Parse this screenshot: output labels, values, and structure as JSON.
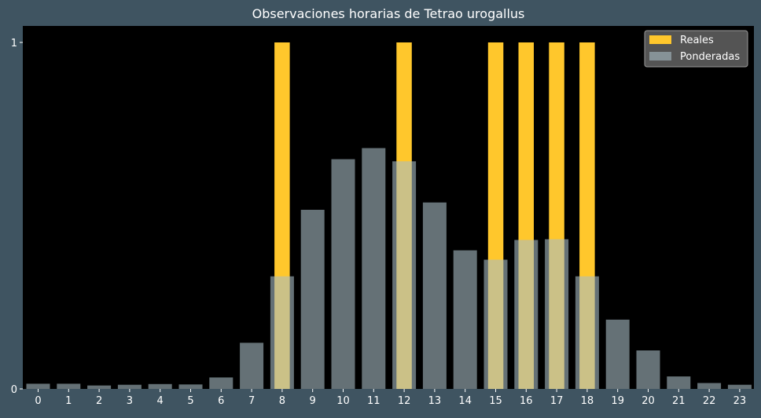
{
  "chart_data": {
    "type": "bar",
    "title": "Observaciones horarias de Tetrao urogallus",
    "xlabel": "",
    "ylabel": "",
    "categories": [
      "0",
      "1",
      "2",
      "3",
      "4",
      "5",
      "6",
      "7",
      "8",
      "9",
      "10",
      "11",
      "12",
      "13",
      "14",
      "15",
      "16",
      "17",
      "18",
      "19",
      "20",
      "21",
      "22",
      "23"
    ],
    "ylim": [
      0,
      1
    ],
    "yticks": [
      "0",
      "1"
    ],
    "grid": false,
    "legend_position": "top-right",
    "series": [
      {
        "name": "Reales",
        "color": "#ffc72c",
        "values": [
          0,
          0,
          0,
          0,
          0,
          0,
          0,
          0,
          1,
          0,
          0,
          0,
          1,
          0,
          0,
          1,
          1,
          1,
          1,
          0,
          0,
          0,
          0,
          0
        ]
      },
      {
        "name": "Ponderadas",
        "color": "#a9bdc4",
        "opacity": 0.6,
        "values": [
          0.015,
          0.015,
          0.01,
          0.012,
          0.014,
          0.013,
          0.033,
          0.133,
          0.325,
          0.517,
          0.663,
          0.695,
          0.657,
          0.538,
          0.4,
          0.373,
          0.43,
          0.432,
          0.325,
          0.2,
          0.111,
          0.036,
          0.017,
          0.012
        ]
      }
    ]
  },
  "colors": {
    "page_background": "#3f5461",
    "plot_background": "#000000",
    "text": "#ffffff",
    "legend_background": "#595959",
    "legend_border": "#9a9a9a"
  }
}
